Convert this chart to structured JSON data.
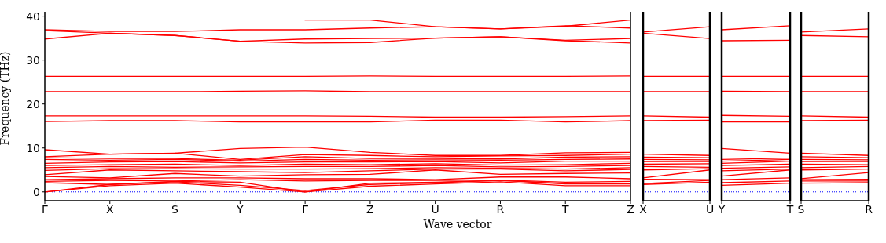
{
  "chart_data": [
    {
      "type": "line",
      "xlabel": "Wave vector",
      "ylabel": "Frequency (THz)",
      "marker": "none",
      "line_style": "solid",
      "categories": [
        "Γ",
        "X",
        "S",
        "Y",
        "Γ",
        "Z",
        "U",
        "R",
        "T",
        "Z"
      ],
      "ylim": [
        -2,
        41
      ],
      "yticks": [
        0,
        10,
        20,
        30,
        40
      ],
      "ref_lines": [
        {
          "axis": "y",
          "value": 0,
          "color": "#0000ff",
          "line_style": "dotted"
        }
      ],
      "series": [
        {
          "color": "#ff0000",
          "values": [
            36.9,
            36.5,
            36.5,
            36.9,
            36.9,
            37.3,
            37.6,
            37.1,
            37.8,
            37.3
          ]
        },
        {
          "color": "#ff0000",
          "values": [
            36.7,
            36.1,
            35.6,
            34.3,
            34.8,
            34.9,
            35.0,
            35.3,
            34.5,
            34.9
          ]
        },
        {
          "color": "#ff0000",
          "values": [
            34.8,
            36.1,
            35.6,
            34.3,
            33.9,
            34.0,
            35.0,
            35.3,
            34.4,
            33.9
          ]
        },
        {
          "color": "#ff0000",
          "values": [
            null,
            null,
            null,
            null,
            39.1,
            39.1,
            37.6,
            37.1,
            37.7,
            39.1
          ]
        },
        {
          "color": "#ff0000",
          "values": [
            26.3,
            26.3,
            26.3,
            26.3,
            26.3,
            26.4,
            26.3,
            26.3,
            26.3,
            26.4
          ]
        },
        {
          "color": "#ff0000",
          "values": [
            22.8,
            22.8,
            22.8,
            22.9,
            23.0,
            22.8,
            22.8,
            22.8,
            22.8,
            22.8
          ]
        },
        {
          "color": "#ff0000",
          "values": [
            17.3,
            17.3,
            17.3,
            17.3,
            17.3,
            17.2,
            17.0,
            17.0,
            17.1,
            17.3
          ]
        },
        {
          "color": "#ff0000",
          "values": [
            16.0,
            16.2,
            16.2,
            15.9,
            15.9,
            15.9,
            16.3,
            16.3,
            15.9,
            16.2
          ]
        },
        {
          "color": "#ff0000",
          "values": [
            9.6,
            8.6,
            8.8,
            9.9,
            10.2,
            9.0,
            8.3,
            8.3,
            8.9,
            9.0
          ]
        },
        {
          "color": "#ff0000",
          "values": [
            8.0,
            8.6,
            8.8,
            7.4,
            8.5,
            8.3,
            8.0,
            8.2,
            8.3,
            8.6
          ]
        },
        {
          "color": "#ff0000",
          "values": [
            7.8,
            7.6,
            7.6,
            7.2,
            8.0,
            7.6,
            7.6,
            7.5,
            7.9,
            8.0
          ]
        },
        {
          "color": "#ff0000",
          "values": [
            7.4,
            7.2,
            7.4,
            7.0,
            7.4,
            7.2,
            7.3,
            7.2,
            7.4,
            7.5
          ]
        },
        {
          "color": "#ff0000",
          "values": [
            6.5,
            6.8,
            6.9,
            6.6,
            6.8,
            6.8,
            6.9,
            6.6,
            7.0,
            7.0
          ]
        },
        {
          "color": "#ff0000",
          "values": [
            6.0,
            6.2,
            6.3,
            6.0,
            6.3,
            6.2,
            6.4,
            6.1,
            6.2,
            6.5
          ]
        },
        {
          "color": "#ff0000",
          "values": [
            5.5,
            5.8,
            5.6,
            5.7,
            5.8,
            5.8,
            6.0,
            5.7,
            5.8,
            6.0
          ]
        },
        {
          "color": "#ff0000",
          "values": [
            4.9,
            5.3,
            5.3,
            5.2,
            5.2,
            5.3,
            5.5,
            5.4,
            5.2,
            5.5
          ]
        },
        {
          "color": "#ff0000",
          "values": [
            3.9,
            5.0,
            4.8,
            4.6,
            4.4,
            4.8,
            5.2,
            5.2,
            4.8,
            5.1
          ]
        },
        {
          "color": "#ff0000",
          "values": [
            3.5,
            3.2,
            4.2,
            3.6,
            3.9,
            4.0,
            5.0,
            4.0,
            4.2,
            4.3
          ]
        },
        {
          "color": "#ff0000",
          "values": [
            2.8,
            3.0,
            3.2,
            3.2,
            3.0,
            3.0,
            2.8,
            3.4,
            3.4,
            3.0
          ]
        },
        {
          "color": "#ff0000",
          "values": [
            2.4,
            2.6,
            2.5,
            2.8,
            2.5,
            2.6,
            2.6,
            2.7,
            2.2,
            2.4
          ]
        },
        {
          "color": "#ff0000",
          "values": [
            2.1,
            1.7,
            2.4,
            2.2,
            0,
            2.0,
            2.2,
            2.6,
            1.9,
            2.0
          ]
        },
        {
          "color": "#ff0000",
          "values": [
            0,
            1.7,
            2.3,
            1.5,
            0.3,
            1.7,
            2.1,
            2.6,
            1.8,
            1.8
          ]
        },
        {
          "color": "#ff0000",
          "values": [
            0,
            1.4,
            2.0,
            1.1,
            0,
            1.3,
            1.8,
            2.3,
            1.4,
            1.4
          ]
        }
      ]
    },
    {
      "type": "line",
      "marker": "none",
      "line_style": "solid",
      "tick_labels": "x",
      "categories": [
        "X",
        "U"
      ],
      "ylim": [
        -2,
        41
      ],
      "ref_lines": [
        {
          "axis": "y",
          "value": 0,
          "color": "#0000ff",
          "line_style": "dotted"
        }
      ],
      "series": [
        {
          "color": "#ff0000",
          "values": [
            36.4,
            37.6
          ]
        },
        {
          "color": "#ff0000",
          "values": [
            36.1,
            34.9
          ]
        },
        {
          "color": "#ff0000",
          "values": [
            26.3,
            26.3
          ]
        },
        {
          "color": "#ff0000",
          "values": [
            22.8,
            22.8
          ]
        },
        {
          "color": "#ff0000",
          "values": [
            17.3,
            17.0
          ]
        },
        {
          "color": "#ff0000",
          "values": [
            16.2,
            16.3
          ]
        },
        {
          "color": "#ff0000",
          "values": [
            8.6,
            8.3
          ]
        },
        {
          "color": "#ff0000",
          "values": [
            7.9,
            7.8
          ]
        },
        {
          "color": "#ff0000",
          "values": [
            7.4,
            7.3
          ]
        },
        {
          "color": "#ff0000",
          "values": [
            6.9,
            6.9
          ]
        },
        {
          "color": "#ff0000",
          "values": [
            6.3,
            6.4
          ]
        },
        {
          "color": "#ff0000",
          "values": [
            5.8,
            5.6
          ]
        },
        {
          "color": "#ff0000",
          "values": [
            5.0,
            5.3
          ]
        },
        {
          "color": "#ff0000",
          "values": [
            3.2,
            5.0
          ]
        },
        {
          "color": "#ff0000",
          "values": [
            2.9,
            2.8
          ]
        },
        {
          "color": "#ff0000",
          "values": [
            1.9,
            2.6
          ]
        },
        {
          "color": "#ff0000",
          "values": [
            1.7,
            2.2
          ]
        }
      ]
    },
    {
      "type": "line",
      "marker": "none",
      "line_style": "solid",
      "tick_labels": "x",
      "categories": [
        "Y",
        "T"
      ],
      "ylim": [
        -2,
        41
      ],
      "ref_lines": [
        {
          "axis": "y",
          "value": 0,
          "color": "#0000ff",
          "line_style": "dotted"
        }
      ],
      "series": [
        {
          "color": "#ff0000",
          "values": [
            36.9,
            37.8
          ]
        },
        {
          "color": "#ff0000",
          "values": [
            34.4,
            34.5
          ]
        },
        {
          "color": "#ff0000",
          "values": [
            26.3,
            26.3
          ]
        },
        {
          "color": "#ff0000",
          "values": [
            22.9,
            22.8
          ]
        },
        {
          "color": "#ff0000",
          "values": [
            17.4,
            17.2
          ]
        },
        {
          "color": "#ff0000",
          "values": [
            15.9,
            15.9
          ]
        },
        {
          "color": "#ff0000",
          "values": [
            9.9,
            8.8
          ]
        },
        {
          "color": "#ff0000",
          "values": [
            7.4,
            7.7
          ]
        },
        {
          "color": "#ff0000",
          "values": [
            7.0,
            7.4
          ]
        },
        {
          "color": "#ff0000",
          "values": [
            6.5,
            7.0
          ]
        },
        {
          "color": "#ff0000",
          "values": [
            6.0,
            6.3
          ]
        },
        {
          "color": "#ff0000",
          "values": [
            5.4,
            5.7
          ]
        },
        {
          "color": "#ff0000",
          "values": [
            4.8,
            5.2
          ]
        },
        {
          "color": "#ff0000",
          "values": [
            3.6,
            5.0
          ]
        },
        {
          "color": "#ff0000",
          "values": [
            2.8,
            3.2
          ]
        },
        {
          "color": "#ff0000",
          "values": [
            2.1,
            2.5
          ]
        },
        {
          "color": "#ff0000",
          "values": [
            1.5,
            2.0
          ]
        }
      ]
    },
    {
      "type": "line",
      "marker": "none",
      "line_style": "solid",
      "tick_labels": "x",
      "categories": [
        "S",
        "R"
      ],
      "ylim": [
        -2,
        41
      ],
      "ref_lines": [
        {
          "axis": "y",
          "value": 0,
          "color": "#0000ff",
          "line_style": "dotted"
        }
      ],
      "series": [
        {
          "color": "#ff0000",
          "values": [
            36.4,
            37.1
          ]
        },
        {
          "color": "#ff0000",
          "values": [
            35.6,
            35.3
          ]
        },
        {
          "color": "#ff0000",
          "values": [
            26.3,
            26.3
          ]
        },
        {
          "color": "#ff0000",
          "values": [
            22.8,
            22.8
          ]
        },
        {
          "color": "#ff0000",
          "values": [
            17.3,
            17.0
          ]
        },
        {
          "color": "#ff0000",
          "values": [
            16.2,
            16.3
          ]
        },
        {
          "color": "#ff0000",
          "values": [
            8.8,
            8.3
          ]
        },
        {
          "color": "#ff0000",
          "values": [
            8.0,
            7.8
          ]
        },
        {
          "color": "#ff0000",
          "values": [
            7.4,
            7.3
          ]
        },
        {
          "color": "#ff0000",
          "values": [
            6.9,
            6.9
          ]
        },
        {
          "color": "#ff0000",
          "values": [
            6.3,
            6.2
          ]
        },
        {
          "color": "#ff0000",
          "values": [
            5.5,
            5.8
          ]
        },
        {
          "color": "#ff0000",
          "values": [
            5.0,
            5.2
          ]
        },
        {
          "color": "#ff0000",
          "values": [
            3.0,
            4.4
          ]
        },
        {
          "color": "#ff0000",
          "values": [
            2.8,
            2.9
          ]
        },
        {
          "color": "#ff0000",
          "values": [
            2.5,
            2.5
          ]
        },
        {
          "color": "#ff0000",
          "values": [
            2.0,
            2.1
          ]
        }
      ]
    }
  ]
}
